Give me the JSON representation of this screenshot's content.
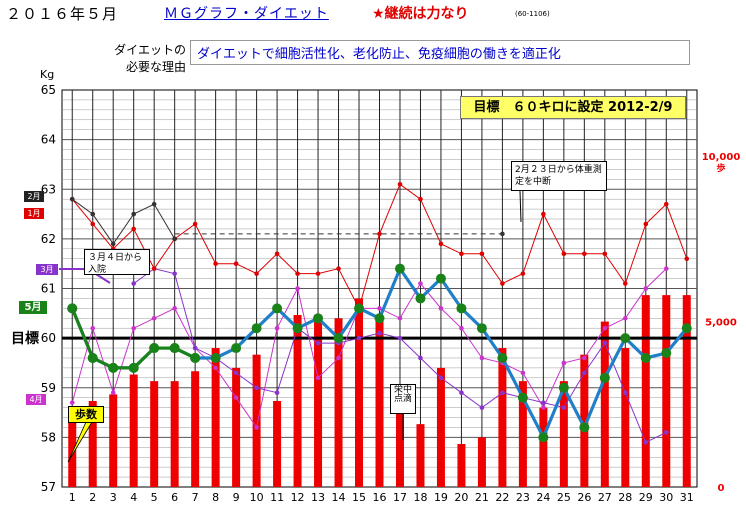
{
  "header": {
    "date": "２０１６年５月",
    "title": "ＭＧグラフ・ダイエット",
    "motto": "★継続は力なり",
    "code": "(60-1106)"
  },
  "reason": {
    "label_line1": "ダイエットの",
    "label_line2": "必要な理由",
    "text": "ダイエットで細胞活性化、老化防止、免疫細胞の働きを適正化"
  },
  "target_note": "目標　６０キロに設定 2012-2/9",
  "notes": {
    "feb": "2月２３日から体重測定を中断",
    "mar": "３月４日から入院",
    "drip": "栄中点滴"
  },
  "tags": {
    "feb": "2月",
    "jan": "1月",
    "mar": "3月",
    "may": "5月",
    "apr": "4月"
  },
  "target_label": "目標",
  "steps_label": "歩数",
  "colors": {
    "may": "#1f7fc8",
    "may_early": "#198219",
    "may_marker": "#198219",
    "jan": "#e00000",
    "feb": "#333333",
    "mar": "#8833cc",
    "apr": "#cc33cc",
    "steps": "#ee0000",
    "target_line": "#000000",
    "plot_bg": "#ffffff"
  },
  "chart_data": {
    "type": "line",
    "x": [
      1,
      2,
      3,
      4,
      5,
      6,
      7,
      8,
      9,
      10,
      11,
      12,
      13,
      14,
      15,
      16,
      17,
      18,
      19,
      20,
      21,
      22,
      23,
      24,
      25,
      26,
      27,
      28,
      29,
      30,
      31
    ],
    "ylabel": "Kg",
    "ylim": [
      57,
      65
    ],
    "yticks": [
      57,
      58,
      59,
      60,
      61,
      62,
      63,
      64,
      65
    ],
    "target": 60,
    "y2lim": [
      0,
      12000
    ],
    "y2ticks_labels": [
      "0",
      "5,000",
      "10,000"
    ],
    "y2unit": "歩",
    "series": [
      {
        "name": "5月",
        "key": "may",
        "values": [
          60.6,
          59.6,
          59.4,
          59.4,
          59.8,
          59.8,
          59.6,
          59.6,
          59.8,
          60.2,
          60.6,
          60.2,
          60.4,
          60.0,
          60.6,
          60.4,
          61.4,
          60.8,
          61.2,
          60.6,
          60.2,
          59.6,
          58.8,
          58.0,
          59.0,
          58.2,
          59.2,
          60.0,
          59.6,
          59.7,
          60.2
        ]
      },
      {
        "name": "1月",
        "key": "jan",
        "values": [
          62.8,
          62.3,
          61.8,
          62.2,
          61.4,
          62.0,
          62.3,
          61.5,
          61.5,
          61.3,
          61.7,
          61.3,
          61.3,
          61.4,
          60.6,
          62.1,
          63.1,
          62.8,
          61.9,
          61.7,
          61.7,
          61.1,
          61.3,
          62.5,
          61.7,
          61.7,
          61.7,
          61.1,
          62.3,
          62.7,
          61.6
        ]
      },
      {
        "name": "2月",
        "key": "feb",
        "values": [
          62.8,
          62.5,
          61.9,
          62.5,
          62.7,
          62.0,
          null,
          null,
          null,
          null,
          null,
          null,
          null,
          null,
          null,
          null,
          null,
          null,
          null,
          null,
          null,
          62.1,
          null,
          null,
          null,
          null,
          null,
          null,
          null,
          null,
          null
        ]
      },
      {
        "name": "3月",
        "key": "mar",
        "values": [
          null,
          null,
          null,
          61.1,
          61.4,
          61.3,
          59.8,
          59.6,
          59.3,
          59.0,
          58.9,
          60.2,
          59.9,
          59.9,
          60.0,
          60.1,
          60.0,
          59.6,
          59.2,
          58.9,
          58.6,
          58.9,
          58.8,
          58.7,
          58.6,
          59.3,
          59.9,
          58.9,
          57.9,
          58.1,
          null
        ]
      },
      {
        "name": "4月",
        "key": "apr",
        "values": [
          58.7,
          60.2,
          58.9,
          60.2,
          60.4,
          60.6,
          59.8,
          59.4,
          58.8,
          58.2,
          60.2,
          61.0,
          59.2,
          59.6,
          60.6,
          60.6,
          60.4,
          61.1,
          60.6,
          60.2,
          59.6,
          59.5,
          59.3,
          58.6,
          59.5,
          59.6,
          60.2,
          60.4,
          61.0,
          61.4,
          null
        ]
      }
    ],
    "steps": [
      2300,
      2600,
      2800,
      3400,
      3200,
      3200,
      3500,
      4200,
      3600,
      4000,
      2600,
      5200,
      5200,
      5100,
      5700,
      5200,
      3000,
      1900,
      3600,
      1300,
      1500,
      4200,
      3200,
      2400,
      3200,
      4000,
      5000,
      4200,
      5800,
      5800,
      5800
    ]
  }
}
